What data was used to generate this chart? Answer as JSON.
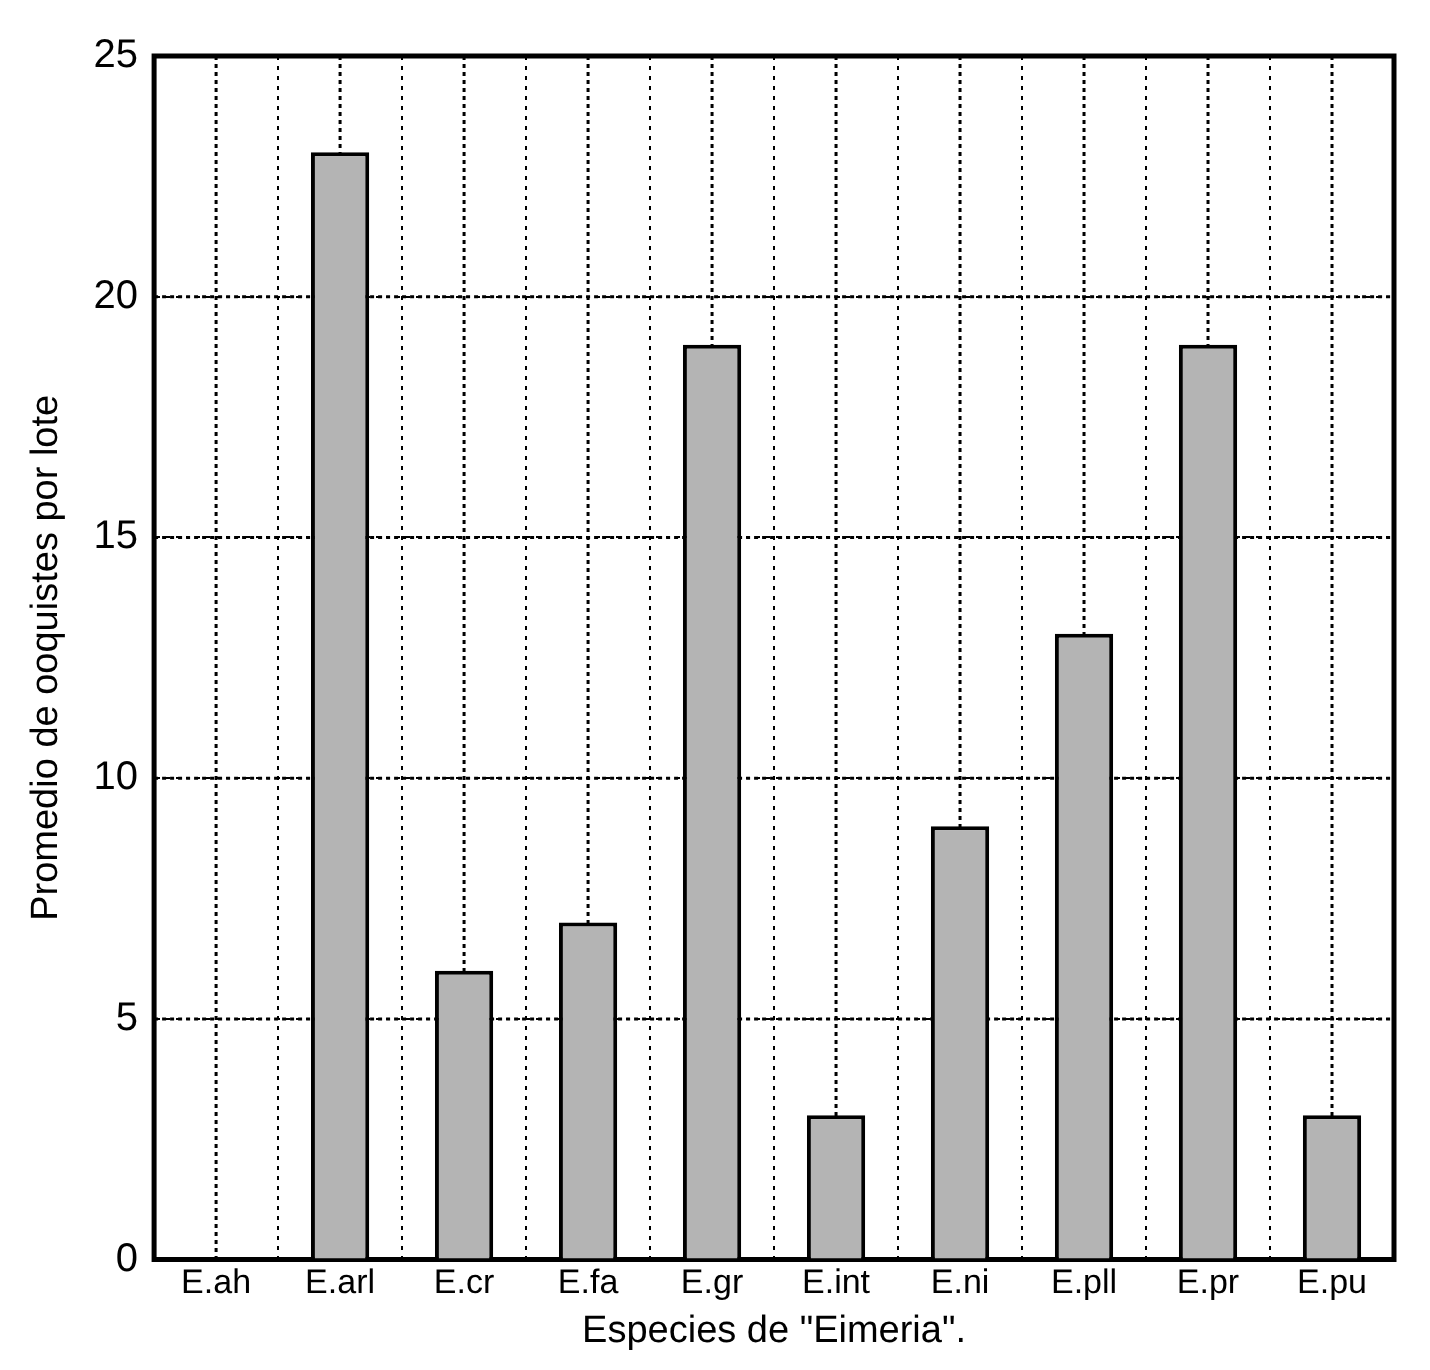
{
  "chart_data": {
    "type": "bar",
    "xlabel": "Especies de \"Eimeria\".",
    "ylabel": "Promedio de ooquistes por lote",
    "categories": [
      "E.ah",
      "E.arl",
      "E.cr",
      "E.fa",
      "E.gr",
      "E.int",
      "E.ni",
      "E.pll",
      "E.pr",
      "E.pu"
    ],
    "values": [
      0,
      23,
      6,
      7,
      19,
      3,
      9,
      13,
      19,
      3
    ],
    "color": "#b4b4b4",
    "ylim": [
      0,
      25
    ],
    "yticks": [
      0,
      5,
      10,
      15,
      20,
      25
    ],
    "grid": true,
    "legend": false
  }
}
